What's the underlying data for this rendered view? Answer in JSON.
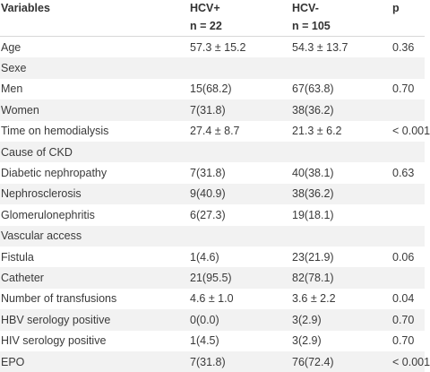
{
  "header": {
    "variables": "Variables",
    "hcv_pos": "HCV+",
    "hcv_neg": "HCV-",
    "p": "p",
    "n_pos": "n = 22",
    "n_neg": "n = 105"
  },
  "rows": [
    {
      "label": "Age",
      "hcv_pos": "57.3 ± 15.2",
      "hcv_neg": "54.3 ± 13.7",
      "p": "0.36"
    },
    {
      "label": "Sexe",
      "hcv_pos": "",
      "hcv_neg": "",
      "p": ""
    },
    {
      "label": "Men",
      "hcv_pos": "15(68.2)",
      "hcv_neg": "67(63.8)",
      "p": "0.70"
    },
    {
      "label": "Women",
      "hcv_pos": "7(31.8)",
      "hcv_neg": "38(36.2)",
      "p": ""
    },
    {
      "label": "Time on hemodialysis",
      "hcv_pos": "27.4 ± 8.7",
      "hcv_neg": "21.3 ± 6.2",
      "p": "< 0.001"
    },
    {
      "label": "Cause of CKD",
      "hcv_pos": "",
      "hcv_neg": "",
      "p": ""
    },
    {
      "label": "Diabetic nephropathy",
      "hcv_pos": "7(31.8)",
      "hcv_neg": "40(38.1)",
      "p": "0.63"
    },
    {
      "label": "Nephrosclerosis",
      "hcv_pos": "9(40.9)",
      "hcv_neg": "38(36.2)",
      "p": ""
    },
    {
      "label": "Glomerulonephritis",
      "hcv_pos": "6(27.3)",
      "hcv_neg": "19(18.1)",
      "p": ""
    },
    {
      "label": "Vascular access",
      "hcv_pos": "",
      "hcv_neg": "",
      "p": ""
    },
    {
      "label": "Fistula",
      "hcv_pos": "1(4.6)",
      "hcv_neg": "23(21.9)",
      "p": "0.06"
    },
    {
      "label": "Catheter",
      "hcv_pos": "21(95.5)",
      "hcv_neg": "82(78.1)",
      "p": ""
    },
    {
      "label": "Number of transfusions",
      "hcv_pos": "4.6 ± 1.0",
      "hcv_neg": "3.6 ± 2.2",
      "p": "0.04"
    },
    {
      "label": "HBV serology positive",
      "hcv_pos": "0(0.0)",
      "hcv_neg": "3(2.9)",
      "p": "0.70"
    },
    {
      "label": "HIV serology positive",
      "hcv_pos": "1(4.5)",
      "hcv_neg": "3(2.9)",
      "p": "0.70"
    },
    {
      "label": "EPO",
      "hcv_pos": "7(31.8)",
      "hcv_neg": "76(72.4)",
      "p": "< 0.001"
    }
  ]
}
